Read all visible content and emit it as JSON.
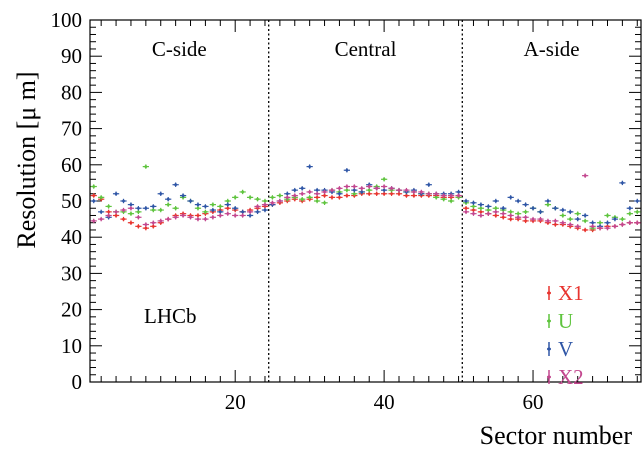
{
  "chart_data": {
    "type": "scatter",
    "xlabel": "Sector number",
    "ylabel": "Resolution [μ m]",
    "xlim": [
      0.5,
      74.5
    ],
    "ylim": [
      0,
      100
    ],
    "xticks": [
      20,
      40,
      60
    ],
    "yticks": [
      0,
      10,
      20,
      30,
      40,
      50,
      60,
      70,
      80,
      90,
      100
    ],
    "grid": false,
    "region_boundaries": [
      24.5,
      50.5
    ],
    "regions": [
      {
        "label": "C-side",
        "x_center": 12.5
      },
      {
        "label": "Central",
        "x_center": 37.5
      },
      {
        "label": "A-side",
        "x_center": 62.5
      }
    ],
    "annotation": "LHCb",
    "legend_position": "bottom-right",
    "series": [
      {
        "name": "X1",
        "color": "#e8342f",
        "values": [
          51.5,
          50.5,
          47,
          46,
          45,
          44,
          43,
          42.5,
          43,
          44,
          45,
          46,
          46.5,
          46,
          46,
          46.5,
          47,
          47.5,
          48,
          47.5,
          47,
          47.5,
          48,
          48.5,
          49,
          49.5,
          50,
          50.5,
          50,
          50.5,
          51,
          51.5,
          51,
          51,
          51.5,
          51.5,
          52,
          52,
          52,
          52,
          52,
          52,
          51.5,
          51.5,
          51.5,
          51.5,
          51.5,
          51,
          51,
          51.5,
          48,
          47.5,
          47,
          46.5,
          46,
          45.5,
          45,
          45,
          44.5,
          44.5,
          44.5,
          44,
          43.5,
          43.5,
          43,
          42.5,
          42,
          42,
          42.5,
          43,
          43,
          43.5,
          44,
          44
        ]
      },
      {
        "name": "U",
        "color": "#5fc43e",
        "values": [
          54,
          51,
          48.5,
          47,
          47,
          46.5,
          47,
          59.5,
          47.5,
          47.5,
          49,
          48,
          51,
          50,
          48,
          47,
          49,
          48.5,
          50,
          51,
          52.5,
          51,
          50.5,
          50,
          51,
          51.5,
          50.5,
          51,
          50.5,
          51,
          50,
          49.5,
          53,
          52.5,
          53,
          52,
          52.5,
          53,
          54,
          56,
          53,
          53,
          52.5,
          52.5,
          52,
          52,
          51,
          50.5,
          50,
          51,
          49.5,
          48.5,
          48,
          47.5,
          48,
          47.5,
          47,
          46.5,
          47,
          48,
          47,
          49,
          48,
          46,
          45,
          46.5,
          44.5,
          42.5,
          44,
          46,
          45.5,
          45,
          46.5,
          47
        ]
      },
      {
        "name": "V",
        "color": "#2f56a6",
        "values": [
          50,
          47,
          45.5,
          52,
          50,
          49,
          48,
          48,
          48.5,
          52,
          50.5,
          54.5,
          51.5,
          50,
          49,
          48.5,
          47.5,
          47,
          49,
          48,
          47,
          46,
          47,
          47.5,
          49,
          50,
          52,
          53,
          53.5,
          59.5,
          53,
          53,
          52.5,
          52,
          58.5,
          53,
          52.5,
          54.5,
          53.5,
          53,
          53.5,
          53,
          52.5,
          53,
          52,
          54.5,
          52,
          52,
          52,
          52.5,
          50,
          49.5,
          49,
          48.5,
          50,
          48,
          51,
          50,
          49,
          48,
          47,
          50,
          48,
          47.5,
          47,
          45,
          46,
          44,
          43,
          44,
          45,
          55,
          48,
          50
        ]
      },
      {
        "name": "X2",
        "color": "#c3478f",
        "values": [
          44.5,
          45,
          46,
          47,
          47.5,
          48,
          45.5,
          43.5,
          44,
          44.5,
          45,
          45.5,
          46,
          45.5,
          45,
          45,
          45.5,
          46,
          46.5,
          46,
          46,
          47,
          48.5,
          49,
          49.5,
          50,
          51,
          51.5,
          52,
          52.5,
          52,
          52.5,
          53,
          53.5,
          54,
          54,
          53.5,
          54,
          53.5,
          54,
          53.5,
          53,
          53,
          52.5,
          52.5,
          52,
          52,
          51.5,
          51.5,
          51.5,
          47,
          46.5,
          46,
          46.5,
          47,
          46.5,
          46,
          45.5,
          45.5,
          45,
          45,
          44.5,
          44.5,
          44,
          43.5,
          43,
          57,
          43,
          42.5,
          42.5,
          43,
          43.5,
          44,
          44
        ]
      }
    ]
  }
}
